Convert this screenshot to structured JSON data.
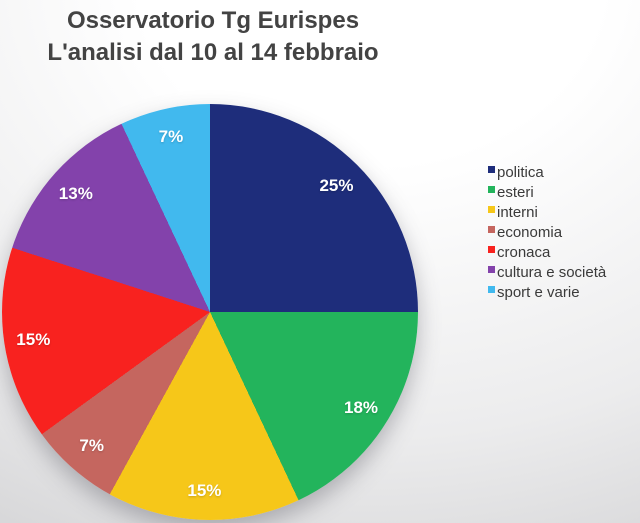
{
  "title": {
    "line1": "Osservatorio Tg Eurispes",
    "line2": "L'analisi dal 10 al 14 febbraio"
  },
  "colors": {
    "background_top": "#ffffff",
    "background_bottom": "#d1d1d3",
    "title_text": "#434343",
    "legend_text": "#3a3a3a",
    "slice_label_text": "#ffffff"
  },
  "chart_data": {
    "type": "pie",
    "title": "Osservatorio Tg Eurispes — L'analisi dal 10 al 14 febbraio",
    "categories": [
      "politica",
      "esteri",
      "interni",
      "economia",
      "cronaca",
      "cultura e società",
      "sport e varie"
    ],
    "values": [
      25,
      18,
      15,
      7,
      15,
      13,
      7
    ],
    "unit": "%",
    "slice_labels": [
      "25%",
      "18%",
      "15%",
      "7%",
      "15%",
      "13%",
      "7%"
    ],
    "slice_colors": [
      "#1e2d7b",
      "#23b45c",
      "#f6c719",
      "#c5665f",
      "#f8221f",
      "#8342ab",
      "#41b9ee"
    ],
    "start_angle_deg": 0,
    "direction": "clockwise",
    "legend_position": "right",
    "label_radius_fraction": 0.86
  }
}
